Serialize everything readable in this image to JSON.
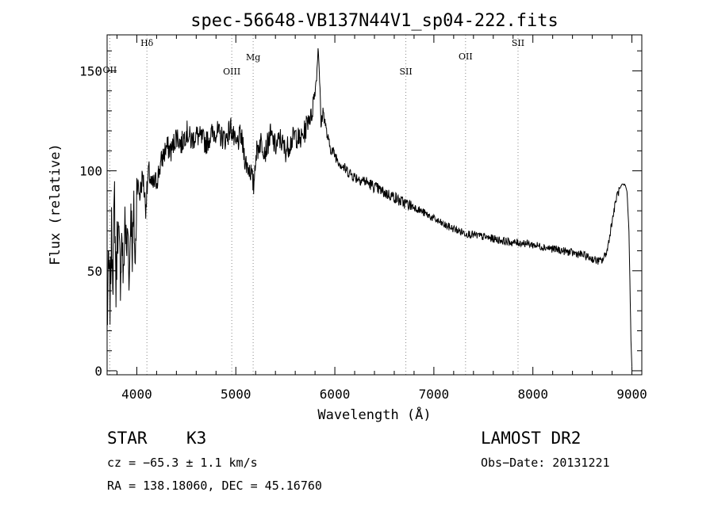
{
  "chart_data": {
    "type": "line",
    "title": "spec-56648-VB137N44V1_sp04-222.fits",
    "xlabel": "Wavelength (Å)",
    "ylabel": "Flux (relative)",
    "xlim": [
      3700,
      9100
    ],
    "ylim": [
      -2,
      168
    ],
    "xticks": [
      4000,
      5000,
      6000,
      7000,
      8000,
      9000
    ],
    "xtick_labels": [
      "4000",
      "5000",
      "6000",
      "7000",
      "8000",
      "9000"
    ],
    "yticks": [
      0,
      50,
      100,
      150
    ],
    "ytick_labels": [
      "0",
      "50",
      "100",
      "150"
    ],
    "grid": false,
    "lines": [
      {
        "label": "OII",
        "x": 3727
      },
      {
        "label": "Hδ",
        "x": 4102
      },
      {
        "label": "OIII",
        "x": 4959
      },
      {
        "label": "Mg",
        "x": 5175
      },
      {
        "label": "SII",
        "x": 6717
      },
      {
        "label": "OII",
        "x": 7320
      },
      {
        "label": "SII",
        "x": 7850
      }
    ],
    "series": [
      {
        "x": [
          3700,
          3715,
          3730,
          3745,
          3760,
          3775,
          3790,
          3805,
          3820,
          3835,
          3850,
          3865,
          3880,
          3895,
          3910,
          3925,
          3940,
          3955,
          3970,
          3985,
          4000,
          4030,
          4060,
          4090,
          4120,
          4150,
          4200,
          4250,
          4300,
          4350,
          4400,
          4450,
          4500,
          4550,
          4600,
          4650,
          4700,
          4750,
          4800,
          4850,
          4900,
          4950,
          5000,
          5050,
          5100,
          5150,
          5180,
          5200,
          5250,
          5300,
          5350,
          5400,
          5450,
          5500,
          5550,
          5600,
          5650,
          5700,
          5740,
          5760,
          5780,
          5800,
          5820,
          5830,
          5840,
          5850,
          5860,
          5880,
          5900,
          5920,
          5950,
          6000,
          6050,
          6100,
          6150,
          6200,
          6300,
          6400,
          6500,
          6600,
          6650,
          6700,
          6800,
          6900,
          7000,
          7100,
          7200,
          7300,
          7400,
          7500,
          7600,
          7700,
          7800,
          7900,
          8000,
          8100,
          8200,
          8300,
          8400,
          8500,
          8600,
          8650,
          8700,
          8750,
          8800,
          8850,
          8900,
          8930,
          8950,
          8970,
          8980,
          8990,
          9000
        ],
        "values": [
          20,
          55,
          35,
          68,
          50,
          88,
          40,
          75,
          62,
          48,
          70,
          42,
          80,
          58,
          72,
          45,
          85,
          60,
          78,
          50,
          95,
          88,
          98,
          82,
          100,
          92,
          95,
          105,
          112,
          110,
          118,
          113,
          120,
          115,
          118,
          116,
          114,
          118,
          120,
          117,
          116,
          122,
          112,
          118,
          104,
          100,
          92,
          108,
          115,
          110,
          118,
          112,
          116,
          110,
          114,
          118,
          115,
          120,
          128,
          126,
          134,
          140,
          150,
          162,
          155,
          140,
          122,
          130,
          125,
          118,
          112,
          108,
          104,
          101,
          99,
          97,
          95,
          92,
          89,
          87,
          85,
          84,
          82,
          79,
          76,
          73,
          71,
          69,
          68,
          67,
          66,
          65,
          64,
          64,
          63,
          62,
          61,
          60,
          59,
          58,
          56,
          55,
          55,
          60,
          75,
          88,
          93,
          93,
          90,
          70,
          45,
          15,
          2
        ]
      }
    ]
  },
  "info": {
    "object_class": "STAR",
    "subclass": "K3",
    "survey": "LAMOST DR2",
    "cz": "cz = −65.3 ± 1.1 km/s",
    "obs_date": "Obs−Date: 20131221",
    "radec": "RA = 138.18060, DEC =  45.16760"
  }
}
